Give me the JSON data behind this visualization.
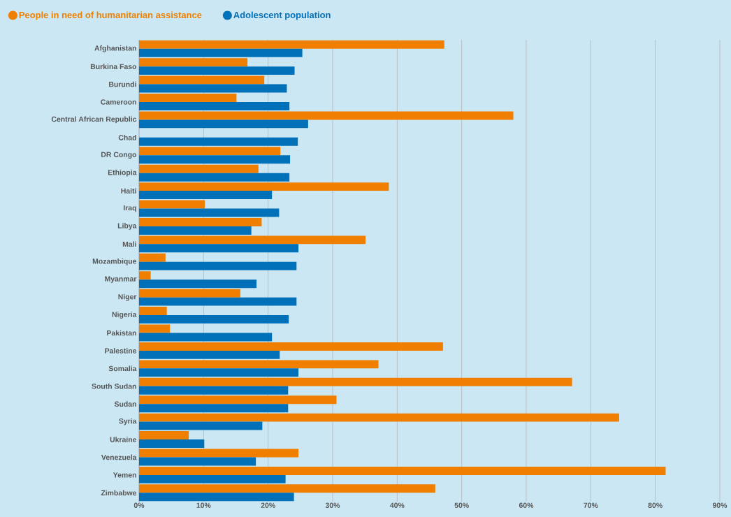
{
  "chart_data": {
    "type": "bar",
    "orientation": "horizontal",
    "categories": [
      "Afghanistan",
      "Burkina Faso",
      "Burundi",
      "Cameroon",
      "Central African Republic",
      "Chad",
      "DR Congo",
      "Ethiopia",
      "Haiti",
      "Iraq",
      "Libya",
      "Mali",
      "Mozambique",
      "Myanmar",
      "Niger",
      "Nigeria",
      "Pakistan",
      "Palestine",
      "Somalia",
      "South Sudan",
      "Sudan",
      "Syria",
      "Ukraine",
      "Venezuela",
      "Yemen",
      "Zimbabwe"
    ],
    "series": [
      {
        "name": "People in need of humanitarian assistance",
        "color": "#f07f00",
        "values": [
          47.3,
          16.8,
          19.4,
          15.1,
          58.0,
          null,
          21.9,
          18.5,
          38.7,
          10.2,
          19.0,
          35.1,
          4.1,
          1.8,
          15.7,
          4.3,
          4.8,
          47.1,
          37.1,
          67.1,
          30.6,
          74.4,
          7.7,
          24.7,
          81.6,
          45.9
        ]
      },
      {
        "name": "Adolescent population",
        "color": "#0070b8",
        "values": [
          25.3,
          24.1,
          22.9,
          23.3,
          26.2,
          24.6,
          23.4,
          23.3,
          20.6,
          21.7,
          17.4,
          24.7,
          24.4,
          18.2,
          24.4,
          23.2,
          20.6,
          21.8,
          24.7,
          23.1,
          23.1,
          19.1,
          10.1,
          18.1,
          22.7,
          24.0
        ]
      }
    ],
    "xlim": [
      0,
      90
    ],
    "xticks": [
      {
        "value": 0,
        "label": "0%"
      },
      {
        "value": 10,
        "label": "10%"
      },
      {
        "value": 20,
        "label": "20%"
      },
      {
        "value": 30,
        "label": "30%"
      },
      {
        "value": 40,
        "label": "40%"
      },
      {
        "value": 50,
        "label": "50%"
      },
      {
        "value": 60,
        "label": "60%"
      },
      {
        "value": 70,
        "label": "70%"
      },
      {
        "value": 80,
        "label": "80%"
      },
      {
        "value": 90,
        "label": "90%"
      }
    ],
    "grid": "x",
    "legend": "top left"
  }
}
